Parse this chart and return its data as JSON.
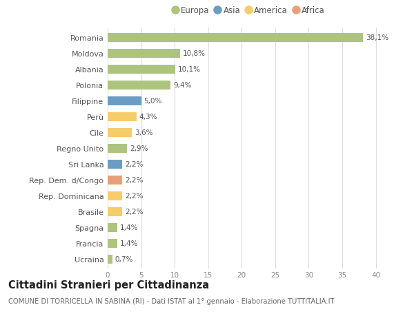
{
  "countries": [
    "Romania",
    "Moldova",
    "Albania",
    "Polonia",
    "Filippine",
    "Perù",
    "Cile",
    "Regno Unito",
    "Sri Lanka",
    "Rep. Dem. d/Congo",
    "Rep. Dominicana",
    "Brasile",
    "Spagna",
    "Francia",
    "Ucraina"
  ],
  "values": [
    38.1,
    10.8,
    10.1,
    9.4,
    5.0,
    4.3,
    3.6,
    2.9,
    2.2,
    2.2,
    2.2,
    2.2,
    1.4,
    1.4,
    0.7
  ],
  "continents": [
    "Europa",
    "Europa",
    "Europa",
    "Europa",
    "Asia",
    "America",
    "America",
    "Europa",
    "Asia",
    "Africa",
    "America",
    "America",
    "Europa",
    "Europa",
    "Europa"
  ],
  "colors": {
    "Europa": "#adc47e",
    "Asia": "#6b9dc2",
    "America": "#f5cd6a",
    "Africa": "#e8a07a"
  },
  "legend_labels": [
    "Europa",
    "Asia",
    "America",
    "Africa"
  ],
  "legend_colors": [
    "#adc47e",
    "#6b9dc2",
    "#f5cd6a",
    "#e8a07a"
  ],
  "xlim": [
    0,
    42
  ],
  "xticks": [
    0,
    5,
    10,
    15,
    20,
    25,
    30,
    35,
    40
  ],
  "title": "Cittadini Stranieri per Cittadinanza",
  "subtitle": "COMUNE DI TORRICELLA IN SABINA (RI) - Dati ISTAT al 1° gennaio - Elaborazione TUTTITALIA.IT",
  "bg_color": "#ffffff",
  "plot_bg_color": "#f9f9f9",
  "grid_color": "#dddddd",
  "label_fontsize": 8,
  "value_fontsize": 7.5,
  "title_fontsize": 10.5,
  "subtitle_fontsize": 7.2,
  "bar_height": 0.55
}
